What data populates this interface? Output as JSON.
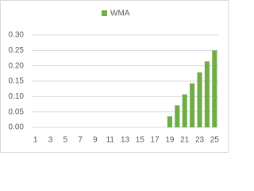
{
  "chart_data": {
    "type": "bar",
    "categories": [
      "1",
      null,
      "3",
      null,
      "5",
      null,
      "7",
      null,
      "9",
      null,
      "11",
      null,
      "13",
      null,
      "15",
      null,
      "17",
      null,
      "19",
      null,
      "21",
      null,
      "23",
      null,
      "25"
    ],
    "series": [
      {
        "name": "WMA",
        "color": "#70ad47",
        "values": [
          0,
          0,
          0,
          0,
          0,
          0,
          0,
          0,
          0,
          0,
          0,
          0,
          0,
          0,
          0,
          0,
          0,
          0,
          0.0357,
          0.0714,
          0.1071,
          0.1429,
          0.1786,
          0.2143,
          0.25
        ]
      }
    ],
    "ylim": [
      0,
      0.3
    ],
    "yticks": [
      {
        "value": 0,
        "label": "0.00"
      },
      {
        "value": 0.05,
        "label": "0.05"
      },
      {
        "value": 0.1,
        "label": "0.10"
      },
      {
        "value": 0.15,
        "label": "0.15"
      },
      {
        "value": 0.2,
        "label": "0.20"
      },
      {
        "value": 0.25,
        "label": "0.25"
      },
      {
        "value": 0.3,
        "label": "0.30"
      }
    ],
    "grid": true,
    "legend": "top"
  }
}
